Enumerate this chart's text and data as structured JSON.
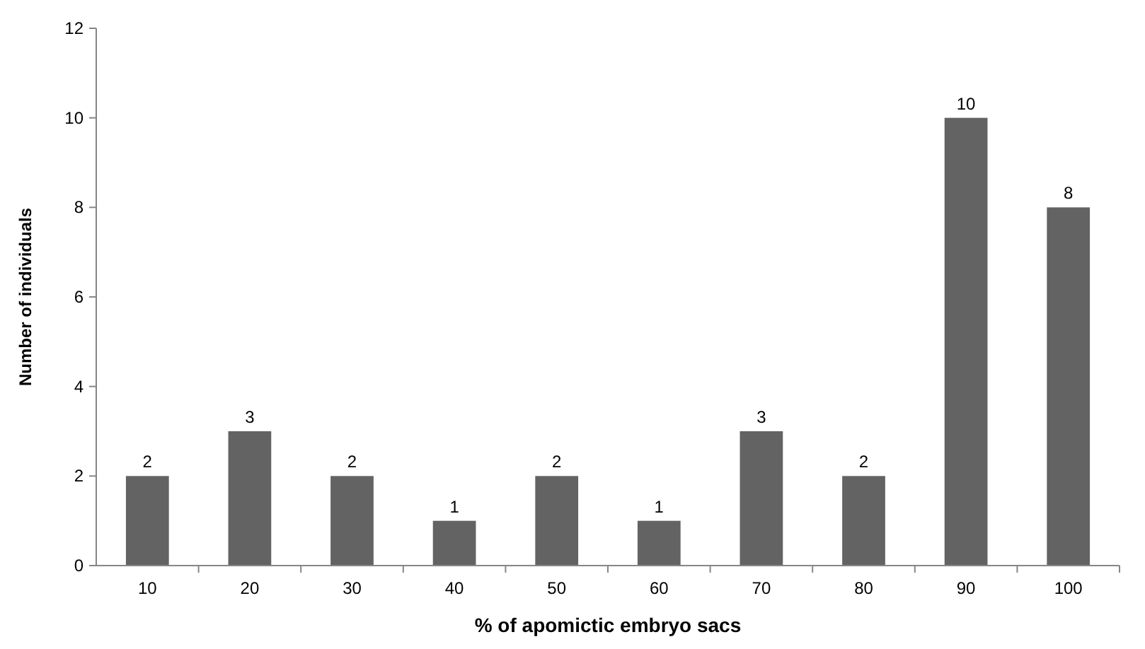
{
  "chart_data": {
    "type": "bar",
    "xlabel": "% of apomictic embryo sacs",
    "ylabel": "Number of individuals",
    "categories": [
      "10",
      "20",
      "30",
      "40",
      "50",
      "60",
      "70",
      "80",
      "90",
      "100"
    ],
    "values": [
      2,
      3,
      2,
      1,
      2,
      1,
      3,
      2,
      10,
      8
    ],
    "color": "#636363",
    "ylim": [
      0,
      12
    ],
    "yticks": [
      0,
      2,
      4,
      6,
      8,
      10,
      12
    ],
    "grid": false,
    "data_labels": true
  }
}
